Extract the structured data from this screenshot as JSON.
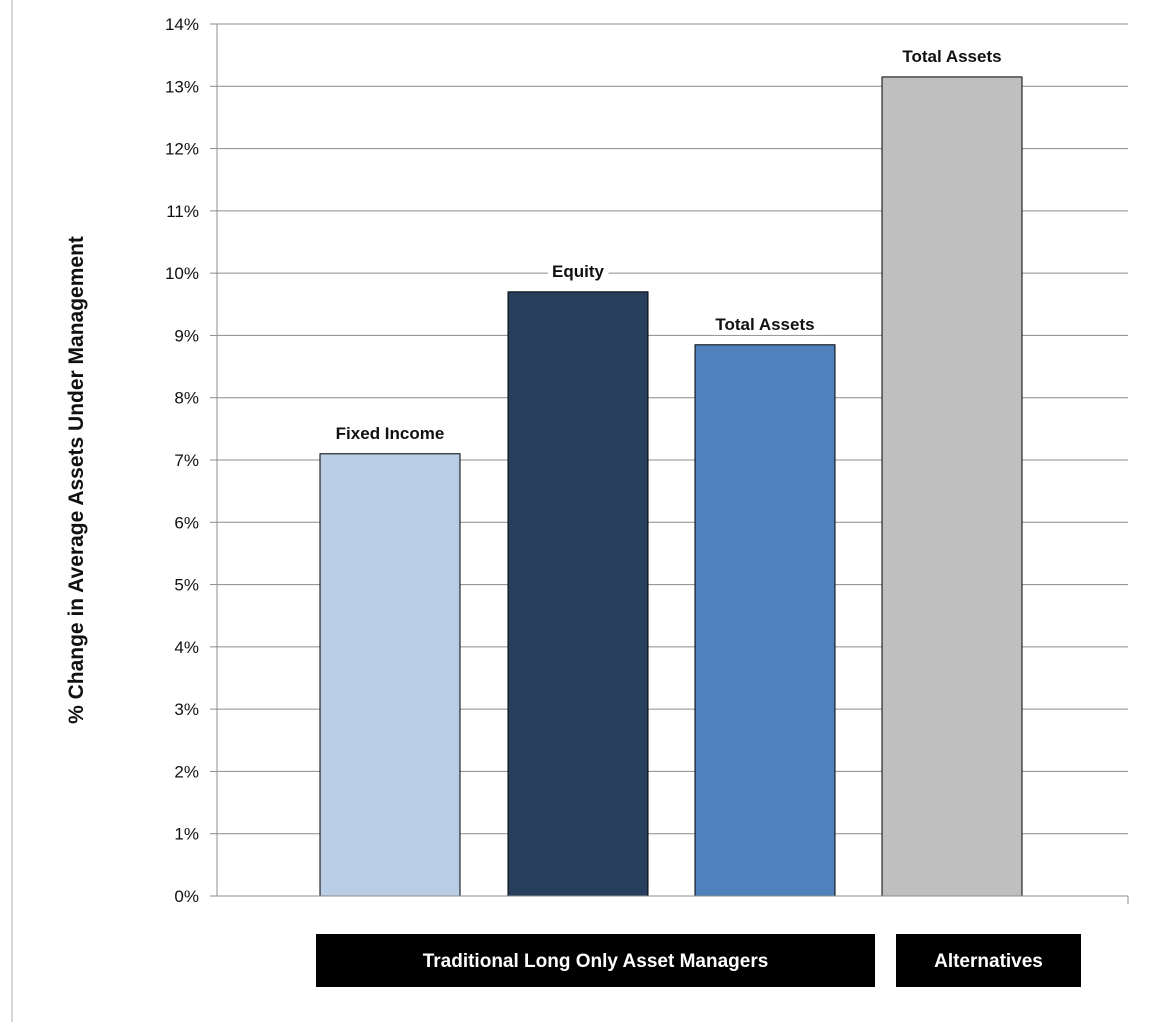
{
  "chart_data": {
    "type": "bar",
    "ylabel": "% Change in Average Assets Under Management",
    "ylim": [
      0,
      14
    ],
    "yticks": [
      "0%",
      "1%",
      "2%",
      "3%",
      "4%",
      "5%",
      "6%",
      "7%",
      "8%",
      "9%",
      "10%",
      "11%",
      "12%",
      "13%",
      "14%"
    ],
    "grid": true,
    "bars": [
      {
        "label": "Fixed Income",
        "value": 7.1,
        "group": "Traditional Long Only Asset Managers",
        "color": "#b9cde4"
      },
      {
        "label": "Equity",
        "value": 9.7,
        "group": "Traditional Long Only Asset Managers",
        "color": "#283f5e"
      },
      {
        "label": "Total Assets",
        "value": 8.85,
        "group": "Traditional Long Only Asset Managers",
        "color": "#4f81bd"
      },
      {
        "label": "Total Assets",
        "value": 13.15,
        "group": "Alternatives",
        "color": "#bfbfbf"
      }
    ],
    "groups": [
      "Traditional Long Only Asset Managers",
      "Alternatives"
    ],
    "colors": {
      "grid": "#8c8c8c",
      "axis": "#8c8c8c",
      "group_box": "#000000",
      "bar_outline": "#000000"
    }
  }
}
